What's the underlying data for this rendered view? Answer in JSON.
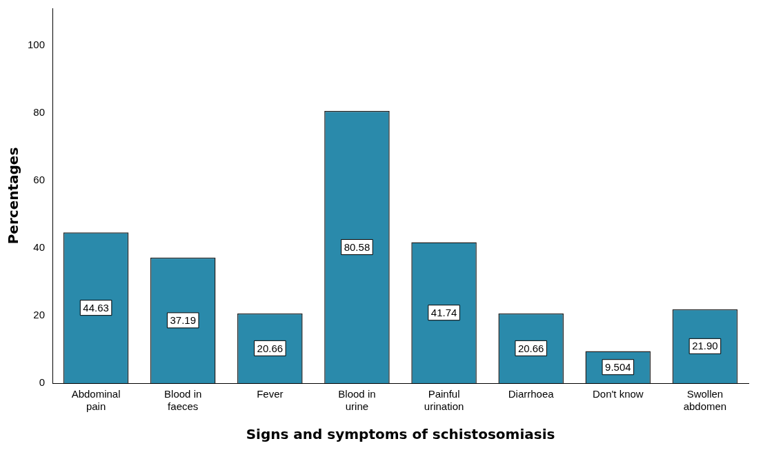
{
  "chart_data": {
    "type": "bar",
    "xlabel": "Signs and symptoms of schistosomiasis",
    "ylabel": "Percentages",
    "categories": [
      "Abdominal pain",
      "Blood in faeces",
      "Fever",
      "Blood in urine",
      "Painful urination",
      "Diarrhoea",
      "Don't know",
      "Swollen abdomen"
    ],
    "values": [
      44.63,
      37.19,
      20.66,
      80.58,
      41.74,
      20.66,
      9.504,
      21.9
    ],
    "value_labels": [
      "44.63",
      "37.19",
      "20.66",
      "80.58",
      "41.74",
      "20.66",
      "9.504",
      "21.90"
    ],
    "color": "#2a8aab",
    "ylim": [
      0,
      111
    ],
    "yticks": [
      0,
      20,
      40,
      60,
      80,
      100
    ],
    "grid": false,
    "legend": false
  }
}
